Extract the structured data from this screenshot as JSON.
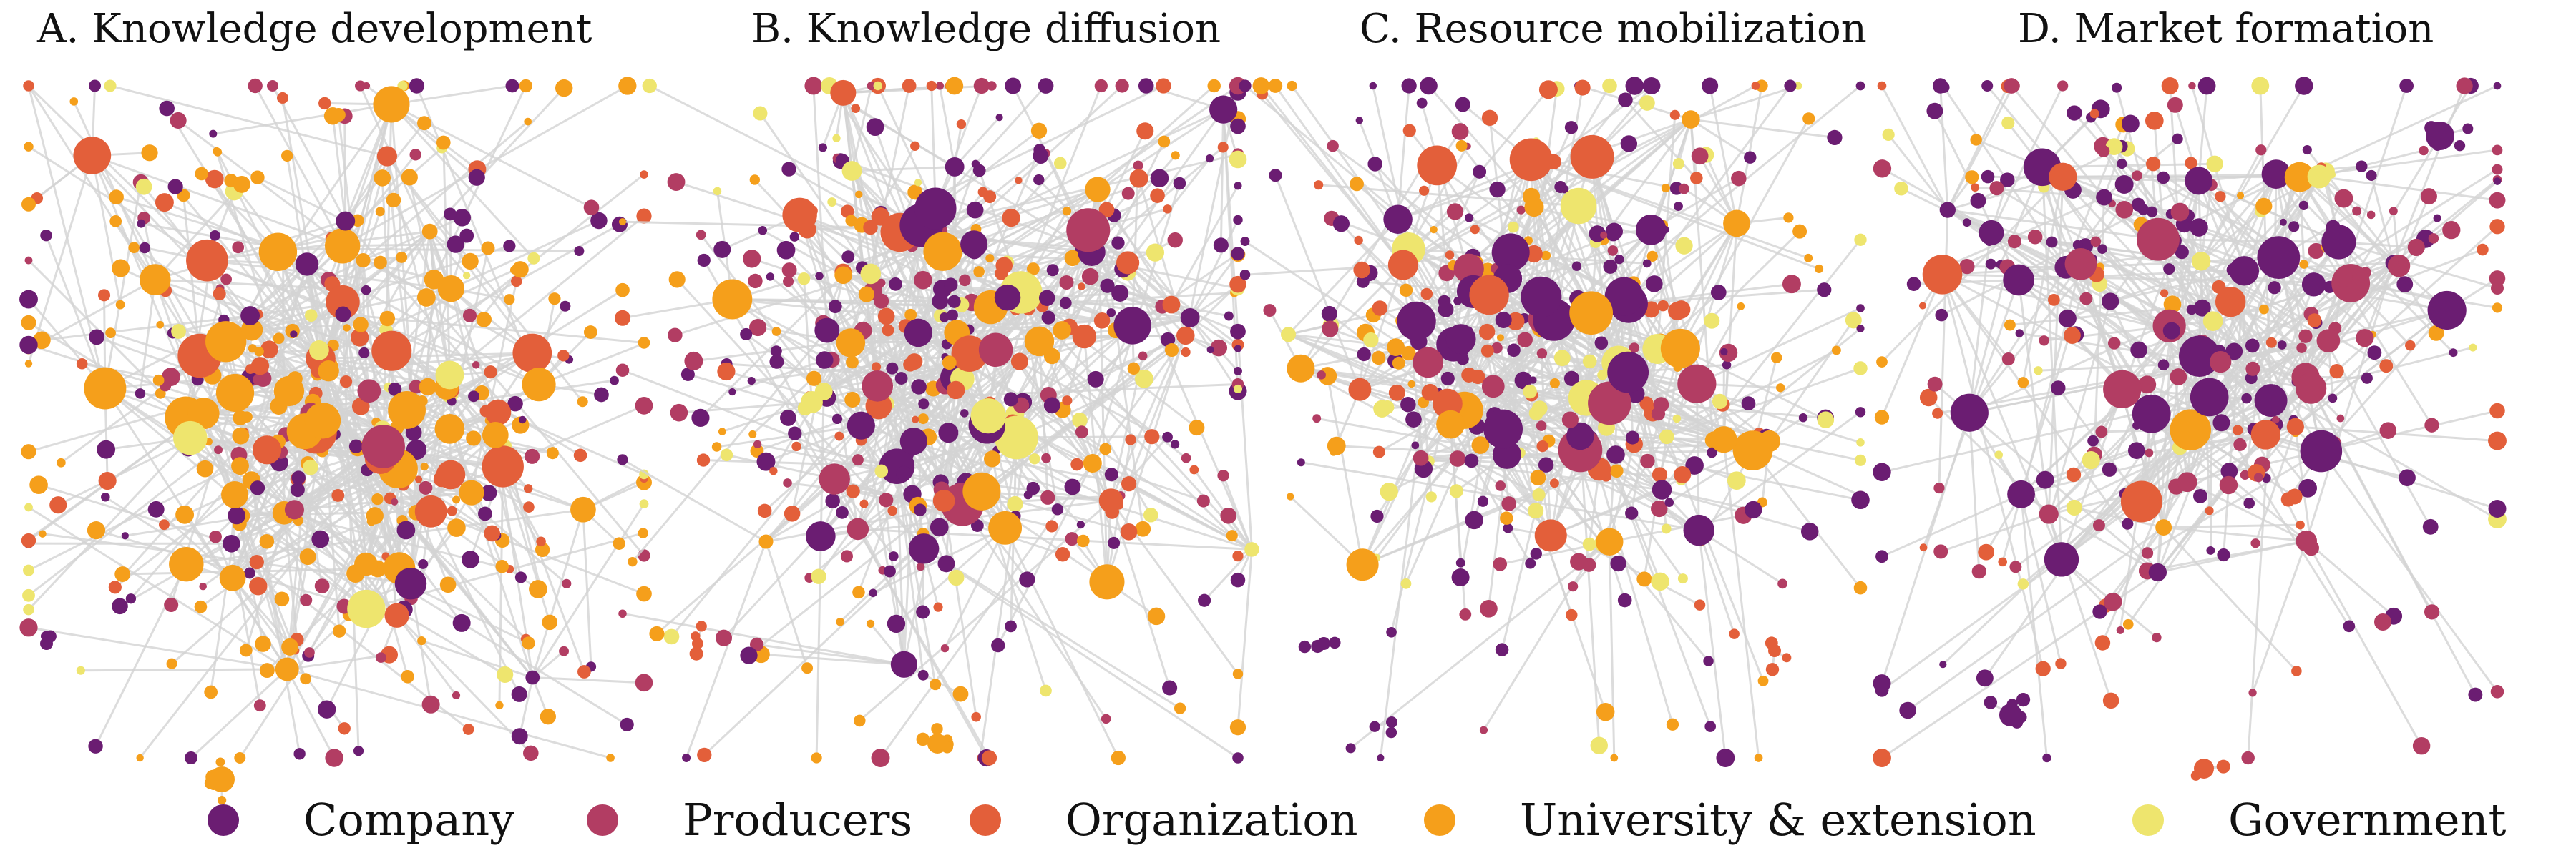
{
  "panels": [
    {
      "id": "A",
      "title": "A. Knowledge development"
    },
    {
      "id": "B",
      "title": "B. Knowledge diffusion"
    },
    {
      "id": "C",
      "title": "C. Resource mobilization"
    },
    {
      "id": "D",
      "title": "D. Market formation"
    }
  ],
  "legend": [
    {
      "label": "Company",
      "color": "#6b1d72"
    },
    {
      "label": "Producers",
      "color": "#b23d63"
    },
    {
      "label": "Organization",
      "color": "#e35f3a"
    },
    {
      "label": "University & extension",
      "color": "#f59f1b"
    },
    {
      "label": "Government",
      "color": "#eee56e"
    }
  ],
  "colors": {
    "company": "#6b1d72",
    "producers": "#b23d63",
    "organization": "#e35f3a",
    "university": "#f59f1b",
    "government": "#eee56e",
    "edge": "#d3d3d3"
  }
}
